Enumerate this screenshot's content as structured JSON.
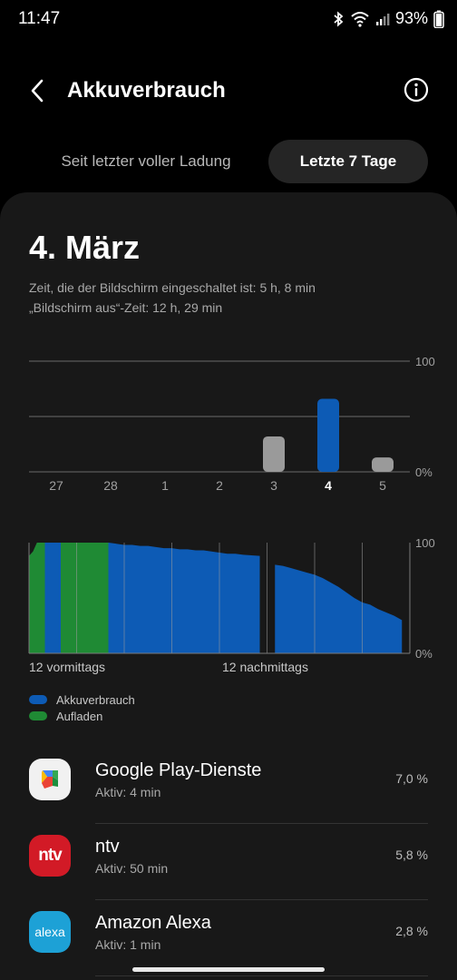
{
  "status_bar": {
    "time": "11:47",
    "battery_percent": "93%",
    "icons": [
      "bluetooth-icon",
      "wifi-icon",
      "signal-icon",
      "battery-icon"
    ]
  },
  "header": {
    "title": "Akkuverbrauch",
    "back_icon": "back-arrow-icon",
    "info_icon": "info-icon"
  },
  "tabs": {
    "inactive": "Seit letzter voller Ladung",
    "active": "Letzte 7 Tage"
  },
  "day": {
    "title": "4. März",
    "screen_on": "Zeit, die der Bildschirm eingeschaltet ist: 5 h, 8 min",
    "screen_off": "„Bildschirm aus“-Zeit: 12 h, 29 min"
  },
  "colors": {
    "usage": "#0d5bb5",
    "charging": "#1f8a34",
    "selected_bar": "#0d5bb5",
    "other_bar": "#9a9a9a"
  },
  "chart_data": [
    {
      "type": "bar",
      "categories": [
        "27",
        "28",
        "1",
        "2",
        "3",
        "4",
        "5"
      ],
      "values": [
        0,
        0,
        0,
        0,
        32,
        66,
        13
      ],
      "selected_category": "4",
      "y_tick_labels": [
        "100",
        "0%"
      ],
      "ylim": [
        0,
        100
      ]
    },
    {
      "type": "area",
      "x_tick_labels": [
        "12 vormittags",
        "12 nachmittags"
      ],
      "y_tick_labels": [
        "100",
        "0%"
      ],
      "ylim": [
        0,
        100
      ],
      "series": [
        {
          "name": "Akkuverbrauch",
          "x": [
            0,
            0.25,
            0.5,
            1.0,
            1.5,
            2.0,
            2.5,
            3.0,
            3.5,
            4.0,
            4.5,
            5.0,
            5.5,
            6.0,
            6.5,
            7.0,
            7.5,
            8.0,
            8.5,
            9.0,
            9.5,
            10.0,
            10.5,
            11.0,
            11.5,
            12.0,
            12.5,
            13.0,
            13.5,
            14.0,
            15.0,
            15.5,
            16.0,
            16.5,
            17.0,
            17.5,
            18.0,
            18.5,
            19.0,
            19.5,
            20.0,
            20.5,
            21.0,
            21.5,
            22.0,
            22.5,
            23.0,
            23.5
          ],
          "values": [
            88,
            92,
            100,
            100,
            100,
            100,
            100,
            100,
            100,
            100,
            100,
            100,
            99,
            98,
            98,
            97,
            97,
            96,
            95,
            95,
            94,
            94,
            93,
            93,
            92,
            91,
            90,
            90,
            89,
            88,
            null,
            80,
            79,
            77,
            75,
            73,
            71,
            68,
            64,
            60,
            55,
            50,
            46,
            44,
            40,
            37,
            34,
            30
          ]
        },
        {
          "name": "Aufladen",
          "x_ranges": [
            [
              0,
              1.0
            ],
            [
              2.0,
              5.0
            ]
          ]
        }
      ]
    }
  ],
  "legend": [
    {
      "label": "Akkuverbrauch",
      "color": "#0d5bb5"
    },
    {
      "label": "Aufladen",
      "color": "#1f8a34"
    }
  ],
  "apps": [
    {
      "name": "Google Play-Dienste",
      "active": "Aktiv: 4 min",
      "percent": "7,0 %",
      "icon": "google-play-services-icon"
    },
    {
      "name": "ntv",
      "active": "Aktiv: 50 min",
      "percent": "5,8 %",
      "icon": "ntv-icon",
      "icon_text": "ntv"
    },
    {
      "name": "Amazon Alexa",
      "active": "Aktiv: 1 min",
      "percent": "2,8 %",
      "icon": "amazon-alexa-icon",
      "icon_text": "alexa"
    }
  ]
}
